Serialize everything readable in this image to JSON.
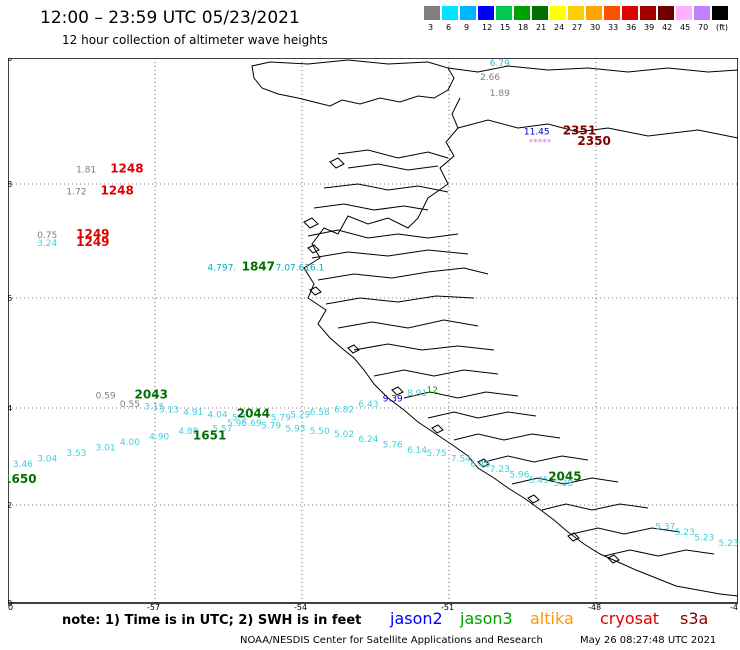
{
  "header": {
    "title": "12:00 – 23:59 UTC 05/23/2021",
    "subtitle": "12 hour collection of altimeter wave heights"
  },
  "colorbar": {
    "labels": [
      "3",
      "6",
      "9",
      "12",
      "15",
      "18",
      "21",
      "24",
      "27",
      "30",
      "33",
      "36",
      "39",
      "42",
      "45",
      "70",
      "(ft)"
    ],
    "colors": [
      "#808080",
      "#00e5ff",
      "#00b4ff",
      "#0000ff",
      "#00c850",
      "#00a000",
      "#007000",
      "#ffff00",
      "#ffd000",
      "#ffa500",
      "#ff5000",
      "#e00000",
      "#a00000",
      "#700000",
      "#ffb0ff",
      "#c080ff",
      "#000000"
    ]
  },
  "axes": {
    "lat_labels": [
      "70",
      "68",
      "66",
      "64",
      "62",
      "60"
    ],
    "lon_labels": [
      "-60",
      "-57",
      "-54",
      "-51",
      "-48",
      "-45"
    ]
  },
  "observations": [
    {
      "text": "6.79",
      "lon": -50.1,
      "lat": 69.85,
      "color": "#3fb0d0"
    },
    {
      "text": "2.66",
      "lon": -50.3,
      "lat": 69.6,
      "color": "#808080"
    },
    {
      "text": "1.89",
      "lon": -50.1,
      "lat": 69.3,
      "color": "#808080"
    },
    {
      "text": "11.45",
      "lon": -49.4,
      "lat": 68.6,
      "color": "#0000c0"
    },
    {
      "text": "2351",
      "lon": -48.6,
      "lat": 68.6,
      "color": "#800000",
      "bold": true
    },
    {
      "text": "*****",
      "lon": -49.3,
      "lat": 68.4,
      "color": "#e070e0"
    },
    {
      "text": "2350",
      "lon": -48.3,
      "lat": 68.4,
      "color": "#800000",
      "bold": true
    },
    {
      "text": "1.81",
      "lon": -58.6,
      "lat": 67.9,
      "color": "#808080"
    },
    {
      "text": "1248",
      "lon": -57.9,
      "lat": 67.9,
      "color": "#e00000",
      "bold": true
    },
    {
      "text": "1.72",
      "lon": -58.8,
      "lat": 67.5,
      "color": "#808080"
    },
    {
      "text": "1248",
      "lon": -58.1,
      "lat": 67.5,
      "color": "#e00000",
      "bold": true
    },
    {
      "text": "0.75",
      "lon": -59.4,
      "lat": 66.7,
      "color": "#808080"
    },
    {
      "text": "1249",
      "lon": -58.6,
      "lat": 66.7,
      "color": "#e00000",
      "bold": true
    },
    {
      "text": "3.24",
      "lon": -59.4,
      "lat": 66.55,
      "color": "#3fd0e0"
    },
    {
      "text": "1249",
      "lon": -58.6,
      "lat": 66.55,
      "color": "#e00000",
      "bold": true
    },
    {
      "text": "4.797.",
      "lon": -55.9,
      "lat": 66.1,
      "color": "#00b0c0"
    },
    {
      "text": "1847",
      "lon": -55.2,
      "lat": 66.1,
      "color": "#007000",
      "bold": true
    },
    {
      "text": "7.07.616.1",
      "lon": -54.5,
      "lat": 66.1,
      "color": "#00b0c0"
    },
    {
      "text": "0.59",
      "lon": -58.2,
      "lat": 63.75,
      "color": "#808080"
    },
    {
      "text": "2043",
      "lon": -57.4,
      "lat": 63.75,
      "color": "#007000",
      "bold": true
    },
    {
      "text": "0.55",
      "lon": -57.7,
      "lat": 63.6,
      "color": "#808080"
    },
    {
      "text": "3.15",
      "lon": -57.2,
      "lat": 63.55,
      "color": "#3fd0e0"
    },
    {
      "text": "3.13",
      "lon": -56.9,
      "lat": 63.5,
      "color": "#3fd0e0"
    },
    {
      "text": "4.91",
      "lon": -56.4,
      "lat": 63.45,
      "color": "#3fd0e0"
    },
    {
      "text": "4.04",
      "lon": -55.9,
      "lat": 63.4,
      "color": "#3fd0e0"
    },
    {
      "text": "5.3",
      "lon": -55.4,
      "lat": 63.35,
      "color": "#3fd0e0"
    },
    {
      "text": "2044",
      "lon": -55.3,
      "lat": 63.4,
      "color": "#007000",
      "bold": true
    },
    {
      "text": "5.79",
      "lon": -54.6,
      "lat": 63.35,
      "color": "#3fd0e0"
    },
    {
      "text": "5.29",
      "lon": -54.2,
      "lat": 63.4,
      "color": "#3fd0e0"
    },
    {
      "text": "6.58",
      "lon": -53.8,
      "lat": 63.45,
      "color": "#3fd0e0"
    },
    {
      "text": "6.82",
      "lon": -53.3,
      "lat": 63.5,
      "color": "#3fd0e0"
    },
    {
      "text": "6.43",
      "lon": -52.8,
      "lat": 63.6,
      "color": "#3fd0e0"
    },
    {
      "text": "9.39",
      "lon": -52.3,
      "lat": 63.7,
      "color": "#0000c0"
    },
    {
      "text": "8.91",
      "lon": -51.8,
      "lat": 63.8,
      "color": "#3fd0e0"
    },
    {
      "text": "12",
      "lon": -51.4,
      "lat": 63.85,
      "color": "#00a000"
    },
    {
      "text": "5.57",
      "lon": -55.8,
      "lat": 63.15,
      "color": "#3fd0e0"
    },
    {
      "text": "5.96",
      "lon": -55.5,
      "lat": 63.25,
      "color": "#3fd0e0"
    },
    {
      "text": "5.69",
      "lon": -55.2,
      "lat": 63.25,
      "color": "#3fd0e0"
    },
    {
      "text": "5.79",
      "lon": -54.8,
      "lat": 63.2,
      "color": "#3fd0e0"
    },
    {
      "text": "5.93",
      "lon": -54.3,
      "lat": 63.15,
      "color": "#3fd0e0"
    },
    {
      "text": "5.50",
      "lon": -53.8,
      "lat": 63.1,
      "color": "#3fd0e0"
    },
    {
      "text": "5.02",
      "lon": -53.3,
      "lat": 63.05,
      "color": "#3fd0e0"
    },
    {
      "text": "6.24",
      "lon": -52.8,
      "lat": 62.95,
      "color": "#3fd0e0"
    },
    {
      "text": "5.76",
      "lon": -52.3,
      "lat": 62.85,
      "color": "#3fd0e0"
    },
    {
      "text": "6.14",
      "lon": -51.8,
      "lat": 62.75,
      "color": "#3fd0e0"
    },
    {
      "text": "5.75",
      "lon": -51.4,
      "lat": 62.7,
      "color": "#3fd0e0"
    },
    {
      "text": "7.54",
      "lon": -50.9,
      "lat": 62.6,
      "color": "#3fd0e0"
    },
    {
      "text": "6.48",
      "lon": -50.5,
      "lat": 62.5,
      "color": "#3fd0e0"
    },
    {
      "text": "7.23",
      "lon": -50.1,
      "lat": 62.4,
      "color": "#3fd0e0"
    },
    {
      "text": "5.96",
      "lon": -49.7,
      "lat": 62.3,
      "color": "#3fd0e0"
    },
    {
      "text": "5.45",
      "lon": -49.3,
      "lat": 62.2,
      "color": "#3fd0e0"
    },
    {
      "text": "4.88",
      "lon": -56.5,
      "lat": 63.1,
      "color": "#3fd0e0"
    },
    {
      "text": "4.90",
      "lon": -57.1,
      "lat": 63.0,
      "color": "#3fd0e0"
    },
    {
      "text": "1651",
      "lon": -56.2,
      "lat": 63.0,
      "color": "#007000",
      "bold": true
    },
    {
      "text": "4.00",
      "lon": -57.7,
      "lat": 62.9,
      "color": "#3fd0e0"
    },
    {
      "text": "3.01",
      "lon": -58.2,
      "lat": 62.8,
      "color": "#3fd0e0"
    },
    {
      "text": "3.53",
      "lon": -58.8,
      "lat": 62.7,
      "color": "#3fd0e0"
    },
    {
      "text": "3.04",
      "lon": -59.4,
      "lat": 62.6,
      "color": "#3fd0e0"
    },
    {
      "text": "3.46",
      "lon": -59.9,
      "lat": 62.5,
      "color": "#3fd0e0"
    },
    {
      "text": "2.49",
      "lon": -60.4,
      "lat": 62.4,
      "color": "#808080"
    },
    {
      "text": "2.81",
      "lon": -60.7,
      "lat": 62.3,
      "color": "#808080"
    },
    {
      "text": "0.59",
      "lon": -61.0,
      "lat": 62.2,
      "color": "#808080"
    },
    {
      "text": "1650",
      "lon": -60.1,
      "lat": 62.2,
      "color": "#007000",
      "bold": true
    },
    {
      "text": "2045",
      "lon": -48.9,
      "lat": 62.25,
      "color": "#007000",
      "bold": true
    },
    {
      "text": "5.38",
      "lon": -48.8,
      "lat": 62.15,
      "color": "#3fd0e0"
    },
    {
      "text": "5.37",
      "lon": -46.7,
      "lat": 61.35,
      "color": "#3fd0e0"
    },
    {
      "text": "5.23",
      "lon": -46.3,
      "lat": 61.25,
      "color": "#3fd0e0"
    },
    {
      "text": "5.23",
      "lon": -45.9,
      "lat": 61.15,
      "color": "#3fd0e0"
    },
    {
      "text": "5.23",
      "lon": -45.4,
      "lat": 61.05,
      "color": "#3fd0e0"
    }
  ],
  "note": "note:  1) Time is in UTC; 2) SWH is in feet",
  "satellites": [
    {
      "name": "jason2",
      "color": "#0000ff"
    },
    {
      "name": "jason3",
      "color": "#00a000"
    },
    {
      "name": "altika",
      "color": "#ff9900"
    },
    {
      "name": "cryosat",
      "color": "#e00000"
    },
    {
      "name": "s3a",
      "color": "#800000"
    }
  ],
  "footer": {
    "credit": "NOAA/NESDIS Center for Satellite Applications and Research",
    "timestamp": "May 26 08:27:48 UTC 2021"
  }
}
